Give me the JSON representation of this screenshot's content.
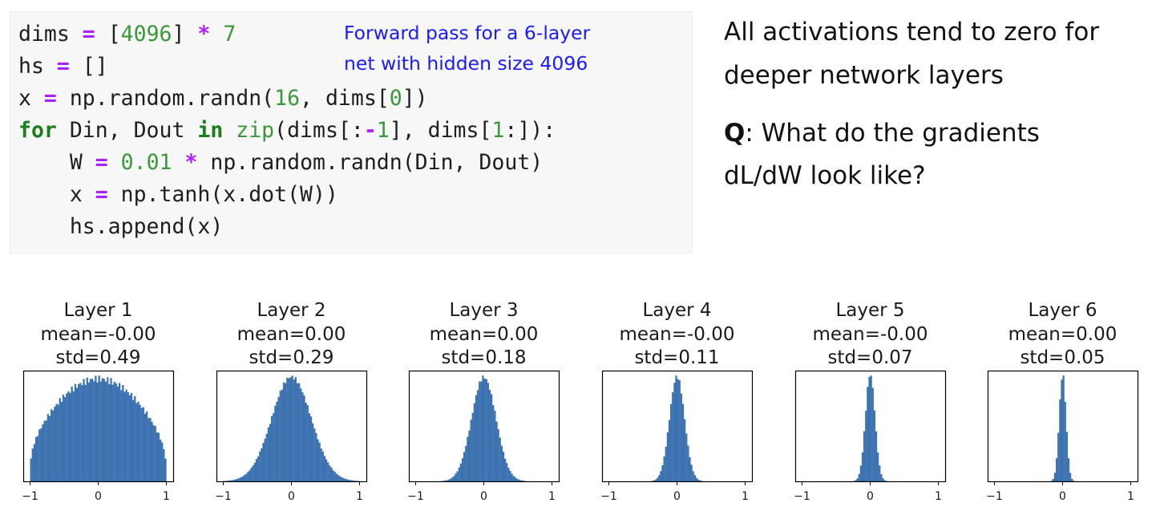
{
  "code": {
    "lines": [
      [
        {
          "t": "dims "
        },
        {
          "t": "=",
          "c": "op"
        },
        {
          "t": " ["
        },
        {
          "t": "4096",
          "c": "num"
        },
        {
          "t": "] "
        },
        {
          "t": "*",
          "c": "op"
        },
        {
          "t": " "
        },
        {
          "t": "7",
          "c": "num"
        }
      ],
      [
        {
          "t": "hs "
        },
        {
          "t": "=",
          "c": "op"
        },
        {
          "t": " []"
        }
      ],
      [
        {
          "t": "x "
        },
        {
          "t": "=",
          "c": "op"
        },
        {
          "t": " np.random.randn("
        },
        {
          "t": "16",
          "c": "num"
        },
        {
          "t": ", dims["
        },
        {
          "t": "0",
          "c": "num"
        },
        {
          "t": "])"
        }
      ],
      [
        {
          "t": "for",
          "c": "kw"
        },
        {
          "t": " Din, Dout "
        },
        {
          "t": "in",
          "c": "kw"
        },
        {
          "t": " "
        },
        {
          "t": "zip",
          "c": "num"
        },
        {
          "t": "(dims[:"
        },
        {
          "t": "-",
          "c": "op"
        },
        {
          "t": "1",
          "c": "num"
        },
        {
          "t": "], dims["
        },
        {
          "t": "1",
          "c": "num"
        },
        {
          "t": ":]):"
        }
      ],
      [
        {
          "t": "    W "
        },
        {
          "t": "=",
          "c": "op"
        },
        {
          "t": " "
        },
        {
          "t": "0.01",
          "c": "num"
        },
        {
          "t": " "
        },
        {
          "t": "*",
          "c": "op"
        },
        {
          "t": " np.random.randn(Din, Dout)"
        }
      ],
      [
        {
          "t": "    x "
        },
        {
          "t": "=",
          "c": "op"
        },
        {
          "t": " np.tanh(x.dot(W))"
        }
      ],
      [
        {
          "t": "    hs.append(x)"
        }
      ]
    ],
    "note_line1": "Forward pass for a 6-layer",
    "note_line2": "net with hidden size 4096"
  },
  "side": {
    "line1": "All activations tend to zero for",
    "line2": "deeper network layers",
    "q_label": "Q",
    "q_line1_rest": ": What do the gradients",
    "q_line2": "dL/dW look like?"
  },
  "chart_data": {
    "type": "bar",
    "bar_color": "#3c73b0",
    "xlim": [
      -1.1,
      1.1
    ],
    "xticks": [
      "−1",
      "0",
      "1"
    ],
    "panels": [
      {
        "title": "Layer 1",
        "mean": "mean=-0.00",
        "std": "std=0.49",
        "std_value": 0.49
      },
      {
        "title": "Layer 2",
        "mean": "mean=0.00",
        "std": "std=0.29",
        "std_value": 0.29
      },
      {
        "title": "Layer 3",
        "mean": "mean=0.00",
        "std": "std=0.18",
        "std_value": 0.18
      },
      {
        "title": "Layer 4",
        "mean": "mean=-0.00",
        "std": "std=0.11",
        "std_value": 0.11
      },
      {
        "title": "Layer 5",
        "mean": "mean=-0.00",
        "std": "std=0.07",
        "std_value": 0.07
      },
      {
        "title": "Layer 6",
        "mean": "mean=0.00",
        "std": "std=0.05",
        "std_value": 0.05
      }
    ]
  }
}
